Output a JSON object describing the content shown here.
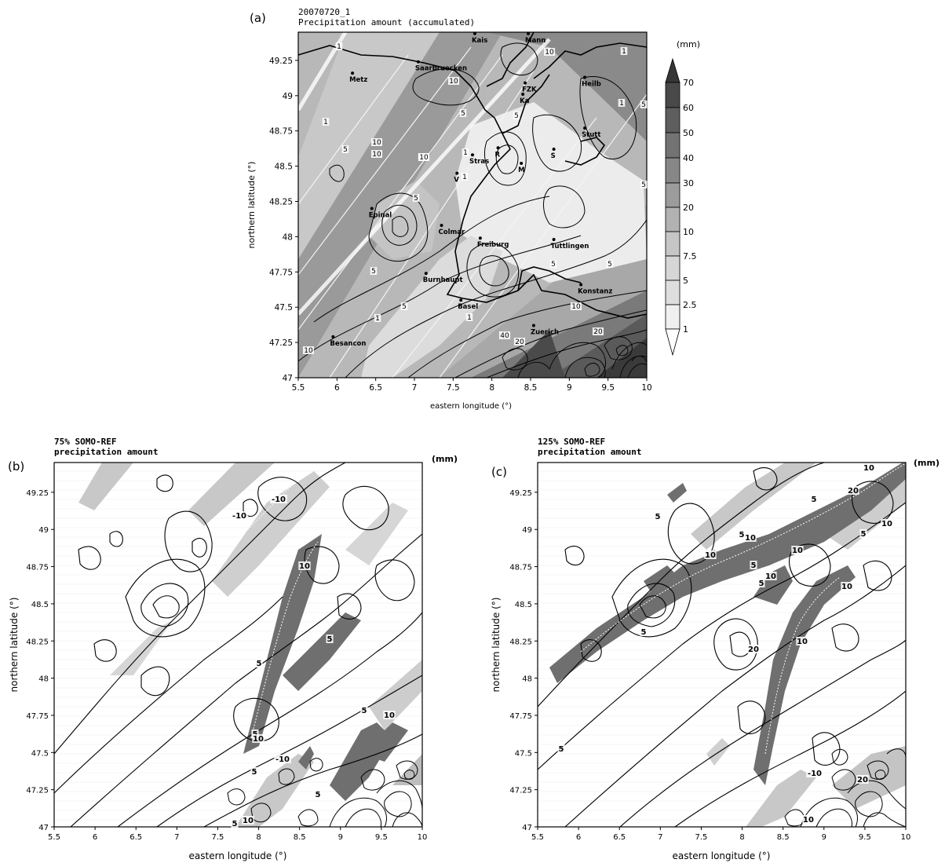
{
  "panel_a": {
    "label": "(a)",
    "title_line1": "20070720_1",
    "title_line2": "Precipitation amount (accumulated)",
    "unit": "(mm)",
    "colorbar_labels": [
      "70",
      "60",
      "50",
      "40",
      "30",
      "20",
      "10",
      "7.5",
      "5",
      "2.5",
      "1"
    ],
    "cities": [
      "Kais",
      "Mann",
      "Saarbruecken",
      "Metz",
      "FZK",
      "Ka",
      "Heilb",
      "Stutt",
      "Stras",
      "R",
      "M",
      "S",
      "V",
      "Epinal",
      "Colmar",
      "Freiburg",
      "Tuttlingen",
      "Burnhaupt",
      "Basel",
      "Konstanz",
      "Zuerich",
      "Besancon"
    ],
    "contour_labels": [
      "1",
      "1",
      "10",
      "10",
      "1",
      "1",
      "5",
      "5",
      "5",
      "10",
      "10",
      "10",
      "1",
      "5",
      "1",
      "5",
      "5",
      "5",
      "5",
      "10",
      "1",
      "20",
      "40",
      "20",
      "10",
      "5",
      "1",
      "5",
      "10"
    ]
  },
  "panel_b": {
    "label": "(b)",
    "title_line1": "75% SOMO-REF",
    "title_line2": "precipitation amount",
    "unit": "(mm)",
    "contour_labels": [
      "-10",
      "-10",
      "10",
      "5",
      "5",
      "5",
      "10",
      "5",
      "10",
      "-10",
      "5",
      "5",
      "10",
      "5"
    ]
  },
  "panel_c": {
    "label": "(c)",
    "title_line1": "125% SOMO-REF",
    "title_line2": "precipitation amount",
    "unit": "(mm)",
    "contour_labels": [
      "10",
      "20",
      "5",
      "5",
      "5",
      "10",
      "10",
      "10",
      "5",
      "10",
      "5",
      "10",
      "20",
      "5",
      "10",
      "10",
      "5",
      "5",
      "-10",
      "20",
      "10"
    ]
  },
  "chart_data": [
    {
      "type": "heatmap",
      "panel": "a",
      "title": "Precipitation amount (accumulated)",
      "subtitle": "20070720_1",
      "xlabel": "eastern longitude (°)",
      "ylabel": "northern latitude (°)",
      "xlim": [
        5.5,
        10
      ],
      "ylim": [
        47,
        49.45
      ],
      "xticks": [
        "5.5",
        "6",
        "6.5",
        "7",
        "7.5",
        "8",
        "8.5",
        "9",
        "9.5",
        "10"
      ],
      "yticks": [
        "47",
        "47.25",
        "47.5",
        "47.75",
        "48",
        "48.25",
        "48.5",
        "48.75",
        "49",
        "49.25"
      ],
      "colorbar_levels": [
        1,
        2.5,
        5,
        7.5,
        10,
        20,
        30,
        40,
        50,
        60,
        70
      ],
      "colorbar_colors": [
        "#f0f0f0",
        "#dedede",
        "#c6c6c6",
        "#b2b2b2",
        "#9c9c9c",
        "#878787",
        "#737373",
        "#5e5e5e",
        "#494949",
        "#363636"
      ],
      "colorbar_unit": "(mm)",
      "cities": [
        {
          "name": "Kais",
          "lon": 7.78,
          "lat": 49.44
        },
        {
          "name": "Mann",
          "lon": 8.47,
          "lat": 49.44
        },
        {
          "name": "Saarbruecken",
          "lon": 7.05,
          "lat": 49.24
        },
        {
          "name": "Metz",
          "lon": 6.2,
          "lat": 49.16
        },
        {
          "name": "FZK",
          "lon": 8.43,
          "lat": 49.09
        },
        {
          "name": "Ka",
          "lon": 8.4,
          "lat": 49.01
        },
        {
          "name": "Heilb",
          "lon": 9.2,
          "lat": 49.13
        },
        {
          "name": "Stutt",
          "lon": 9.2,
          "lat": 48.77
        },
        {
          "name": "Stras",
          "lon": 7.75,
          "lat": 48.58
        },
        {
          "name": "R",
          "lon": 8.08,
          "lat": 48.63
        },
        {
          "name": "M",
          "lon": 8.38,
          "lat": 48.52
        },
        {
          "name": "S",
          "lon": 8.8,
          "lat": 48.62
        },
        {
          "name": "V",
          "lon": 7.55,
          "lat": 48.45
        },
        {
          "name": "Epinal",
          "lon": 6.45,
          "lat": 48.2
        },
        {
          "name": "Colmar",
          "lon": 7.35,
          "lat": 48.08
        },
        {
          "name": "Freiburg",
          "lon": 7.85,
          "lat": 47.99
        },
        {
          "name": "Tuttlingen",
          "lon": 8.8,
          "lat": 47.98
        },
        {
          "name": "Burnhaupt",
          "lon": 7.15,
          "lat": 47.74
        },
        {
          "name": "Basel",
          "lon": 7.6,
          "lat": 47.55
        },
        {
          "name": "Konstanz",
          "lon": 9.15,
          "lat": 47.66
        },
        {
          "name": "Zuerich",
          "lon": 8.54,
          "lat": 47.37
        },
        {
          "name": "Besancon",
          "lon": 5.95,
          "lat": 47.29
        }
      ]
    },
    {
      "type": "heatmap",
      "panel": "b",
      "title": "precipitation amount",
      "subtitle": "75% SOMO-REF",
      "xlabel": "eastern longitude (°)",
      "ylabel": "northern latitude (°)",
      "xlim": [
        5.5,
        10
      ],
      "ylim": [
        47,
        49.45
      ],
      "xticks": [
        "5.5",
        "6",
        "6.5",
        "7",
        "7.5",
        "8",
        "8.5",
        "9",
        "9.5",
        "10"
      ],
      "yticks": [
        "47",
        "47.25",
        "47.5",
        "47.75",
        "48",
        "48.25",
        "48.5",
        "48.75",
        "49",
        "49.25"
      ],
      "colorbar_unit": "(mm)"
    },
    {
      "type": "heatmap",
      "panel": "c",
      "title": "precipitation amount",
      "subtitle": "125% SOMO-REF",
      "xlabel": "eastern longitude (°)",
      "ylabel": "northern latitude (°)",
      "xlim": [
        5.5,
        10
      ],
      "ylim": [
        47,
        49.45
      ],
      "xticks": [
        "5.5",
        "6",
        "6.5",
        "7",
        "7.5",
        "8",
        "8.5",
        "9",
        "9.5",
        "10"
      ],
      "yticks": [
        "47",
        "47.25",
        "47.5",
        "47.75",
        "48",
        "48.25",
        "48.5",
        "48.75",
        "49",
        "49.25"
      ],
      "colorbar_unit": "(mm)"
    }
  ]
}
